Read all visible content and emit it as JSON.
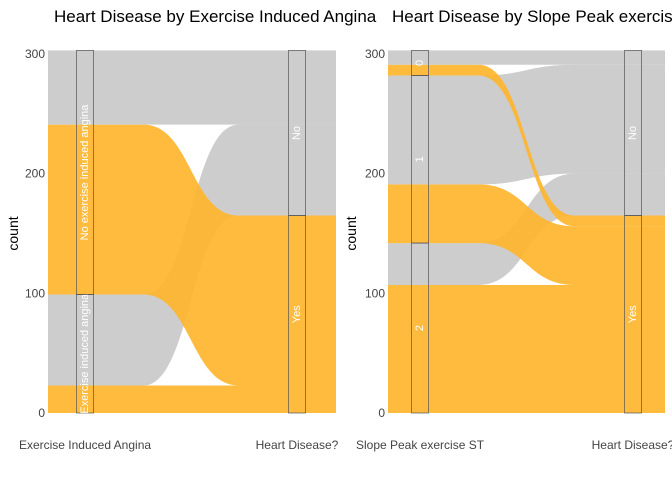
{
  "colors": {
    "yes": "#FFB52E",
    "no": "#C9C9C9",
    "background": "#ffffff"
  },
  "chart_data": [
    {
      "type": "alluvial",
      "title": "Heart Disease by Exercise Induced Angina",
      "xlabel": "",
      "ylabel": "count",
      "ylim": [
        0,
        303
      ],
      "yticks": [
        0,
        100,
        200,
        300
      ],
      "axes": [
        "Exercise Induced Angina",
        "Heart Disease?"
      ],
      "fill_by": "Heart Disease?",
      "strata": [
        {
          "axis": "Exercise Induced Angina",
          "order": [
            "Exercise induced angina",
            "No exercise induced angina"
          ],
          "sizes": [
            99,
            204
          ]
        },
        {
          "axis": "Heart Disease?",
          "order": [
            "Yes",
            "No"
          ],
          "sizes": [
            165,
            138
          ]
        }
      ],
      "flows": [
        {
          "from": "Exercise induced angina",
          "to": "Yes",
          "fill": "Yes",
          "value": 23
        },
        {
          "from": "Exercise induced angina",
          "to": "No",
          "fill": "No",
          "value": 76
        },
        {
          "from": "No exercise induced angina",
          "to": "Yes",
          "fill": "Yes",
          "value": 142
        },
        {
          "from": "No exercise induced angina",
          "to": "No",
          "fill": "No",
          "value": 62
        }
      ],
      "stratum_labels": {
        "Exercise induced angina": "Exercise induced angina",
        "No exercise induced angina": "No exercise induced angina",
        "Yes": "Yes",
        "No": "No"
      }
    },
    {
      "type": "alluvial",
      "title": "Heart Disease by Slope Peak exercise ST",
      "xlabel": "",
      "ylabel": "count",
      "ylim": [
        0,
        303
      ],
      "yticks": [
        0,
        100,
        200,
        300
      ],
      "axes": [
        "Slope Peak exercise ST",
        "Heart Disease?"
      ],
      "fill_by": "Heart Disease?",
      "strata": [
        {
          "axis": "Slope Peak exercise ST",
          "order": [
            "2",
            "1",
            "0"
          ],
          "sizes": [
            142,
            140,
            21
          ]
        },
        {
          "axis": "Heart Disease?",
          "order": [
            "Yes",
            "No"
          ],
          "sizes": [
            165,
            138
          ]
        }
      ],
      "flows": [
        {
          "from": "2",
          "to": "Yes",
          "fill": "Yes",
          "value": 107
        },
        {
          "from": "2",
          "to": "No",
          "fill": "No",
          "value": 35
        },
        {
          "from": "1",
          "to": "Yes",
          "fill": "Yes",
          "value": 49
        },
        {
          "from": "1",
          "to": "No",
          "fill": "No",
          "value": 91
        },
        {
          "from": "0",
          "to": "Yes",
          "fill": "Yes",
          "value": 9
        },
        {
          "from": "0",
          "to": "No",
          "fill": "No",
          "value": 12
        }
      ],
      "stratum_labels": {
        "2": "2",
        "1": "1",
        "0": "0",
        "Yes": "Yes",
        "No": "No"
      }
    }
  ]
}
